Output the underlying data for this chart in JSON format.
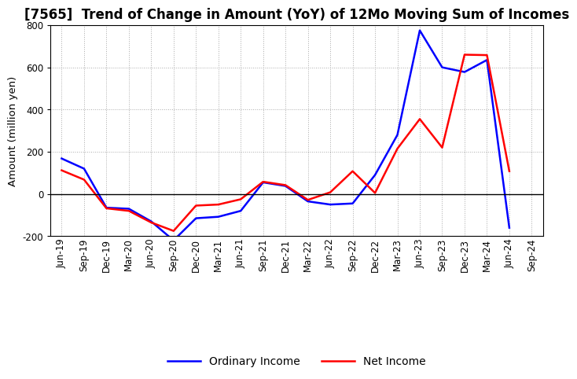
{
  "title": "[7565]  Trend of Change in Amount (YoY) of 12Mo Moving Sum of Incomes",
  "ylabel": "Amount (million yen)",
  "ylim": [
    -200,
    800
  ],
  "yticks": [
    -200,
    0,
    200,
    400,
    600,
    800
  ],
  "x_labels": [
    "Jun-19",
    "Sep-19",
    "Dec-19",
    "Mar-20",
    "Jun-20",
    "Sep-20",
    "Dec-20",
    "Mar-21",
    "Jun-21",
    "Sep-21",
    "Dec-21",
    "Mar-22",
    "Jun-22",
    "Sep-22",
    "Dec-22",
    "Mar-23",
    "Jun-23",
    "Sep-23",
    "Dec-23",
    "Mar-24",
    "Jun-24",
    "Sep-24"
  ],
  "ordinary_income": [
    168,
    120,
    -65,
    -70,
    -130,
    -220,
    -115,
    -108,
    -80,
    55,
    38,
    -35,
    -50,
    -45,
    90,
    280,
    775,
    600,
    578,
    635,
    -160,
    null
  ],
  "net_income": [
    112,
    68,
    -68,
    -80,
    -135,
    -175,
    -55,
    -50,
    -25,
    58,
    42,
    -28,
    8,
    108,
    5,
    215,
    355,
    220,
    660,
    658,
    108,
    null
  ],
  "ordinary_color": "#0000FF",
  "net_color": "#FF0000",
  "line_width": 1.8,
  "bg_color": "#FFFFFF",
  "grid_color": "#AAAAAA",
  "title_fontsize": 12,
  "legend_fontsize": 10,
  "tick_fontsize": 8.5
}
